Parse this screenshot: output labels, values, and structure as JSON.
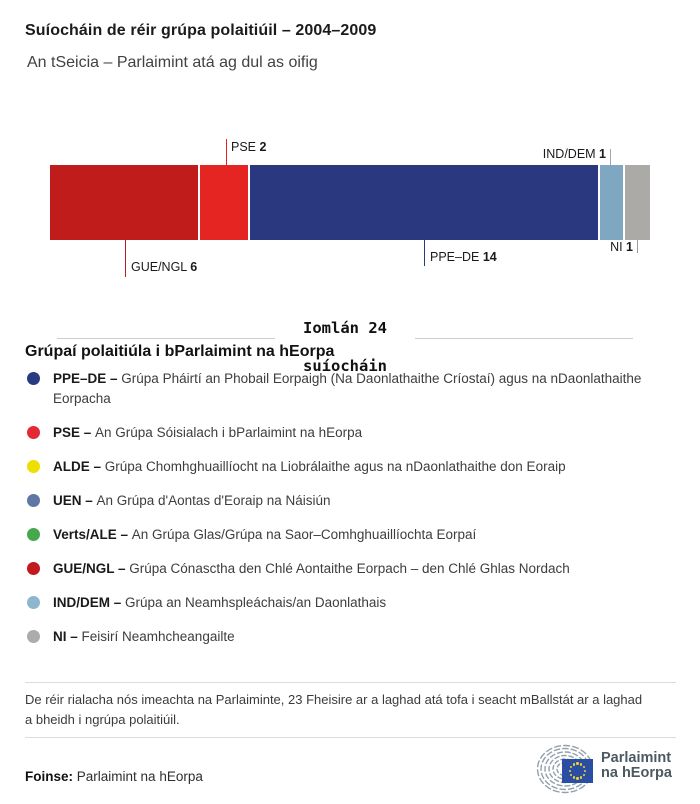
{
  "title": "Suíocháin de réir grúpa polaitiúil – 2004–2009",
  "subtitle": "An tSeicia – Parlaimint atá ag dul as oifig",
  "chart_data": {
    "type": "bar",
    "subtype": "stacked-horizontal-seat-bar",
    "title": "Suíocháin de réir grúpa polaitiúil – 2004–2009",
    "subtitle": "An tSeicia – Parlaimint atá ag dul as oifig",
    "total_seats": 24,
    "unit": "suíocháin",
    "segments": [
      {
        "group": "GUE/NGL",
        "seats": 6,
        "color": "#C01C1C",
        "label_side": "below"
      },
      {
        "group": "PSE",
        "seats": 2,
        "color": "#E42522",
        "label_side": "above"
      },
      {
        "group": "PPE–DE",
        "seats": 14,
        "color": "#2A3880",
        "label_side": "below"
      },
      {
        "group": "IND/DEM",
        "seats": 1,
        "color": "#7FA7C2",
        "label_side": "above"
      },
      {
        "group": "NI",
        "seats": 1,
        "color": "#ABAAA6",
        "label_side": "below"
      }
    ]
  },
  "total": {
    "line1": "Iomlán 24",
    "line2": "suíocháin"
  },
  "legend": {
    "heading": "Grúpaí polaitiúla i bParlaimint na hEorpa",
    "separator": " – ",
    "items": [
      {
        "name": "PPE–DE",
        "color": "#2A3A80",
        "description": "Grúpa Pháirtí an Phobail Eorpaigh (Na Daonlathaithe Críostaí) agus na nDaonlathaithe Eorpacha"
      },
      {
        "name": "PSE",
        "color": "#E42834",
        "description": "An Grúpa Sóisialach i bParlaimint na hEorpa"
      },
      {
        "name": "ALDE",
        "color": "#EFDF00",
        "description": "Grúpa Chomhghuaillíocht na Liobrálaithe agus na nDaonlathaithe don Eoraip"
      },
      {
        "name": "UEN",
        "color": "#5F77A4",
        "description": "An Grúpa d'Aontas d'Eoraip na Náisiún"
      },
      {
        "name": "Verts/ALE",
        "color": "#47A74D",
        "description": "An Grúpa Glas/Grúpa na Saor–Comhghuaillíochta Eorpaí"
      },
      {
        "name": "GUE/NGL",
        "color": "#C2191D",
        "description": "Grúpa Cónasctha den Chlé Aontaithe Eorpach – den Chlé Ghlas Nordach"
      },
      {
        "name": "IND/DEM",
        "color": "#8FB6CF",
        "description": "Grúpa an Neamhspleáchais/an Daonlathais"
      },
      {
        "name": "NI",
        "color": "#ACACAC",
        "description": "Feisirí Neamhcheangailte"
      }
    ]
  },
  "note": "De réir rialacha nós imeachta na Parlaiminte, 23 Fheisire ar a laghad atá tofa i seacht mBallstát ar a laghad a bheidh i ngrúpa polaitiúil.",
  "source": {
    "label": "Foinse:",
    "value": "Parlaimint na hEorpa"
  },
  "logo": {
    "line1": "Parlaimint",
    "line2": "na hEorpa"
  }
}
